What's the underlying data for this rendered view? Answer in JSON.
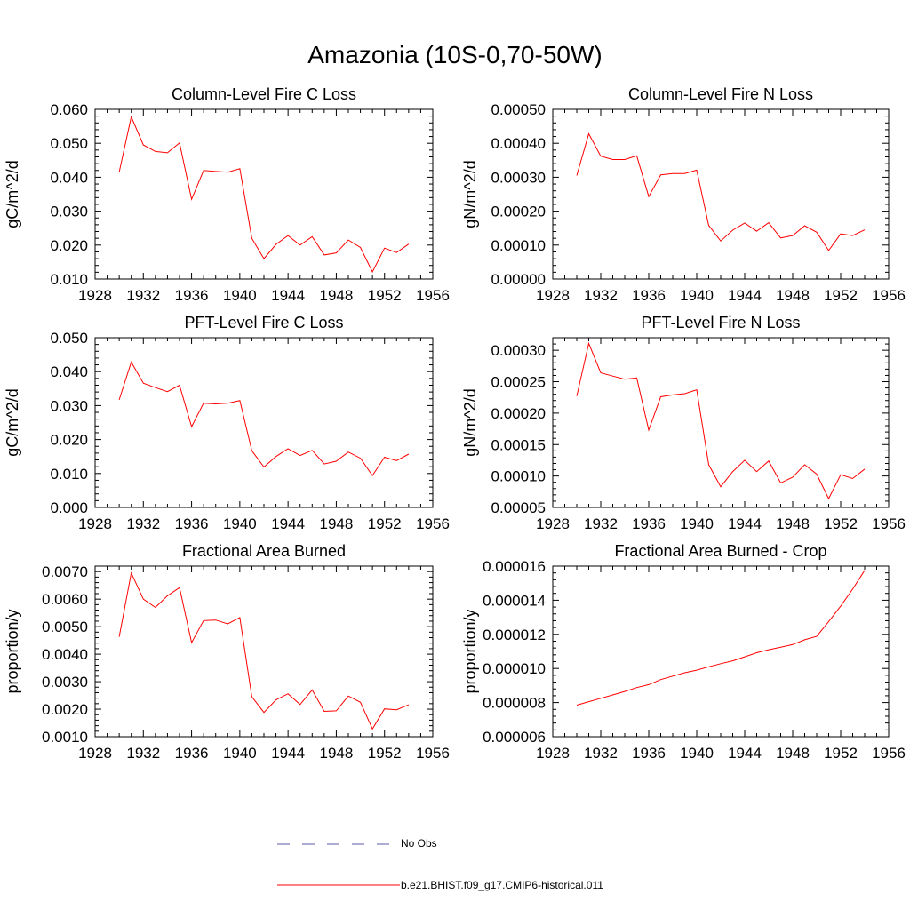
{
  "title": "Amazonia (10S-0,70-50W)",
  "colors": {
    "model": "#ff0000",
    "obs": "#5a5aa8"
  },
  "legend": [
    {
      "label": "No Obs",
      "style": "dashed",
      "color": "#5a5aa8"
    },
    {
      "label": "b.e21.BHIST.f09_g17.CMIP6-historical.011",
      "style": "solid",
      "color": "#ff0000"
    }
  ],
  "chart_data": [
    {
      "type": "line",
      "title": "Column-Level Fire C Loss",
      "ylabel": "gC/m^2/d",
      "xlim": [
        1928,
        1956
      ],
      "ylim": [
        0.01,
        0.06
      ],
      "xticks": [
        "1928",
        "1932",
        "1936",
        "1940",
        "1944",
        "1948",
        "1952",
        "1956"
      ],
      "yticks": [
        "0.010",
        "0.020",
        "0.030",
        "0.040",
        "0.050",
        "0.060"
      ],
      "x": [
        1930,
        1931,
        1932,
        1933,
        1934,
        1935,
        1936,
        1937,
        1938,
        1939,
        1940,
        1941,
        1942,
        1943,
        1944,
        1945,
        1946,
        1947,
        1948,
        1949,
        1950,
        1951,
        1952,
        1953,
        1954
      ],
      "series": [
        {
          "name": "b.e21.BHIST.f09_g17.CMIP6-historical.011",
          "values": [
            0.0415,
            0.0578,
            0.0495,
            0.0476,
            0.0472,
            0.0501,
            0.0335,
            0.042,
            0.0417,
            0.0415,
            0.0425,
            0.022,
            0.016,
            0.0202,
            0.0228,
            0.02,
            0.0225,
            0.0171,
            0.0177,
            0.0215,
            0.0193,
            0.0121,
            0.0191,
            0.0178,
            0.0203
          ]
        }
      ]
    },
    {
      "type": "line",
      "title": "Column-Level Fire N Loss",
      "ylabel": "gN/m^2/d",
      "xlim": [
        1928,
        1956
      ],
      "ylim": [
        0.0,
        0.0005
      ],
      "xticks": [
        "1928",
        "1932",
        "1936",
        "1940",
        "1944",
        "1948",
        "1952",
        "1956"
      ],
      "yticks": [
        "0.00000",
        "0.00010",
        "0.00020",
        "0.00030",
        "0.00040",
        "0.00050"
      ],
      "x": [
        1930,
        1931,
        1932,
        1933,
        1934,
        1935,
        1936,
        1937,
        1938,
        1939,
        1940,
        1941,
        1942,
        1943,
        1944,
        1945,
        1946,
        1947,
        1948,
        1949,
        1950,
        1951,
        1952,
        1953,
        1954
      ],
      "series": [
        {
          "name": "b.e21.BHIST.f09_g17.CMIP6-historical.011",
          "values": [
            0.000305,
            0.000428,
            0.000362,
            0.000352,
            0.000352,
            0.000363,
            0.000243,
            0.000307,
            0.000311,
            0.000311,
            0.000321,
            0.000158,
            0.000112,
            0.000144,
            0.000165,
            0.000141,
            0.000166,
            0.000121,
            0.000128,
            0.000157,
            0.000138,
            8.4e-05,
            0.000133,
            0.000128,
            0.000145
          ]
        }
      ]
    },
    {
      "type": "line",
      "title": "PFT-Level Fire C Loss",
      "ylabel": "gC/m^2/d",
      "xlim": [
        1928,
        1956
      ],
      "ylim": [
        0.0,
        0.05
      ],
      "xticks": [
        "1928",
        "1932",
        "1936",
        "1940",
        "1944",
        "1948",
        "1952",
        "1956"
      ],
      "yticks": [
        "0.000",
        "0.010",
        "0.020",
        "0.030",
        "0.040",
        "0.050"
      ],
      "x": [
        1930,
        1931,
        1932,
        1933,
        1934,
        1935,
        1936,
        1937,
        1938,
        1939,
        1940,
        1941,
        1942,
        1943,
        1944,
        1945,
        1946,
        1947,
        1948,
        1949,
        1950,
        1951,
        1952,
        1953,
        1954
      ],
      "series": [
        {
          "name": "b.e21.BHIST.f09_g17.CMIP6-historical.011",
          "values": [
            0.0317,
            0.0428,
            0.0366,
            0.0353,
            0.0341,
            0.036,
            0.0238,
            0.0307,
            0.0305,
            0.0307,
            0.0315,
            0.0167,
            0.0119,
            0.015,
            0.0173,
            0.0153,
            0.0168,
            0.0128,
            0.0136,
            0.0163,
            0.0145,
            0.0094,
            0.0148,
            0.0138,
            0.0157
          ]
        }
      ]
    },
    {
      "type": "line",
      "title": "PFT-Level Fire N Loss",
      "ylabel": "gN/m^2/d",
      "xlim": [
        1928,
        1956
      ],
      "ylim": [
        5e-05,
        0.00032
      ],
      "xticks": [
        "1928",
        "1932",
        "1936",
        "1940",
        "1944",
        "1948",
        "1952",
        "1956"
      ],
      "yticks": [
        "0.00005",
        "0.00010",
        "0.00015",
        "0.00020",
        "0.00025",
        "0.00030"
      ],
      "x": [
        1930,
        1931,
        1932,
        1933,
        1934,
        1935,
        1936,
        1937,
        1938,
        1939,
        1940,
        1941,
        1942,
        1943,
        1944,
        1945,
        1946,
        1947,
        1948,
        1949,
        1950,
        1951,
        1952,
        1953,
        1954
      ],
      "series": [
        {
          "name": "b.e21.BHIST.f09_g17.CMIP6-historical.011",
          "values": [
            0.000227,
            0.000311,
            0.000264,
            0.000259,
            0.000254,
            0.000256,
            0.000173,
            0.000226,
            0.000229,
            0.000231,
            0.000237,
            0.000118,
            8.3e-05,
            0.000107,
            0.000125,
            0.000107,
            0.000124,
            8.9e-05,
            9.8e-05,
            0.000118,
            0.000103,
            6.4e-05,
            0.000102,
            9.6e-05,
            0.000111
          ]
        }
      ]
    },
    {
      "type": "line",
      "title": "Fractional Area Burned",
      "ylabel": "proportion/y",
      "xlim": [
        1928,
        1956
      ],
      "ylim": [
        0.001,
        0.0072
      ],
      "xticks": [
        "1928",
        "1932",
        "1936",
        "1940",
        "1944",
        "1948",
        "1952",
        "1956"
      ],
      "yticks": [
        "0.0010",
        "0.0020",
        "0.0030",
        "0.0040",
        "0.0050",
        "0.0060",
        "0.0070"
      ],
      "x": [
        1930,
        1931,
        1932,
        1933,
        1934,
        1935,
        1936,
        1937,
        1938,
        1939,
        1940,
        1941,
        1942,
        1943,
        1944,
        1945,
        1946,
        1947,
        1948,
        1949,
        1950,
        1951,
        1952,
        1953,
        1954
      ],
      "series": [
        {
          "name": "b.e21.BHIST.f09_g17.CMIP6-historical.011",
          "values": [
            0.00463,
            0.00695,
            0.006,
            0.0057,
            0.00612,
            0.00642,
            0.00442,
            0.00522,
            0.00524,
            0.0051,
            0.00533,
            0.00245,
            0.00188,
            0.00234,
            0.00256,
            0.00217,
            0.0027,
            0.00192,
            0.00194,
            0.00248,
            0.00225,
            0.00128,
            0.00201,
            0.00198,
            0.00216
          ]
        }
      ]
    },
    {
      "type": "line",
      "title": "Fractional Area Burned - Crop",
      "ylabel": "proportion/y",
      "xlim": [
        1928,
        1956
      ],
      "ylim": [
        6e-06,
        1.6e-05
      ],
      "xticks": [
        "1928",
        "1932",
        "1936",
        "1940",
        "1944",
        "1948",
        "1952",
        "1956"
      ],
      "yticks": [
        "0.000006",
        "0.000008",
        "0.000010",
        "0.000012",
        "0.000014",
        "0.000016"
      ],
      "x": [
        1930,
        1931,
        1932,
        1933,
        1934,
        1935,
        1936,
        1937,
        1938,
        1939,
        1940,
        1941,
        1942,
        1943,
        1944,
        1945,
        1946,
        1947,
        1948,
        1949,
        1950,
        1951,
        1952,
        1953,
        1954
      ],
      "series": [
        {
          "name": "b.e21.BHIST.f09_g17.CMIP6-historical.011",
          "values": [
            7.85e-06,
            8.05e-06,
            8.25e-06,
            8.45e-06,
            8.65e-06,
            8.88e-06,
            9.05e-06,
            9.35e-06,
            9.55e-06,
            9.75e-06,
            9.9e-06,
            1.01e-05,
            1.028e-05,
            1.045e-05,
            1.068e-05,
            1.092e-05,
            1.11e-05,
            1.125e-05,
            1.14e-05,
            1.168e-05,
            1.188e-05,
            1.275e-05,
            1.365e-05,
            1.465e-05,
            1.575e-05
          ]
        }
      ]
    }
  ]
}
